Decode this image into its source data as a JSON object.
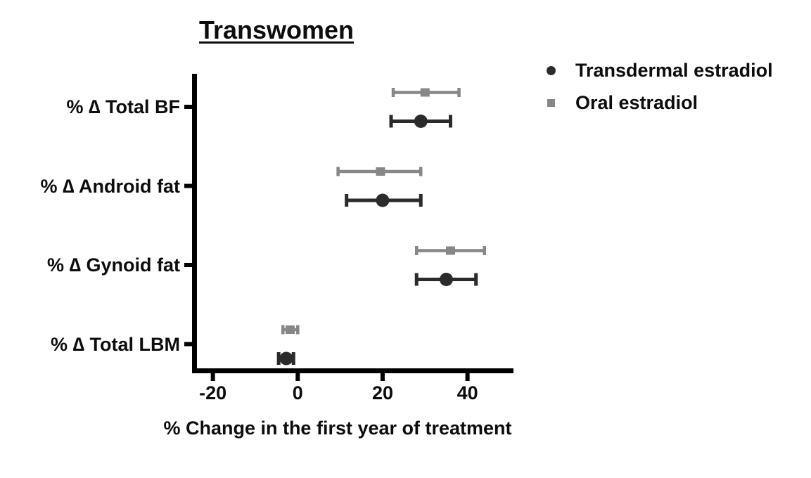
{
  "chart_data": {
    "type": "scatter",
    "subtype": "horizontal-dot-plot-with-error-bars (forest plot)",
    "title": "Transwomen",
    "xlabel": "% Change in the first year of treatment",
    "ylabel": "",
    "categories": [
      "% ∆ Total BF",
      "% ∆ Android fat",
      "% ∆ Gynoid fat",
      "% ∆ Total LBM"
    ],
    "x_ticks": [
      -20,
      0,
      20,
      40
    ],
    "xlim": [
      -25,
      51
    ],
    "grid": false,
    "legend_position": "top-right",
    "within_category_order": [
      "Oral estradiol (top row)",
      "Transdermal estradiol (bottom row)"
    ],
    "axis_color": "#000000",
    "series": [
      {
        "name": "Transdermal estradiol",
        "marker": "circle",
        "color": "#2b2b2b",
        "values": [
          29,
          20,
          35,
          -2.7
        ],
        "ci_low": [
          22,
          11.5,
          28,
          -4.5
        ],
        "ci_high": [
          36,
          29,
          42,
          -1.0
        ]
      },
      {
        "name": "Oral estradiol",
        "marker": "square",
        "color": "#878787",
        "values": [
          30,
          19.5,
          36,
          -1.8
        ],
        "ci_low": [
          22.5,
          9.5,
          28,
          -3.5
        ],
        "ci_high": [
          38,
          29,
          44,
          0
        ]
      }
    ]
  }
}
